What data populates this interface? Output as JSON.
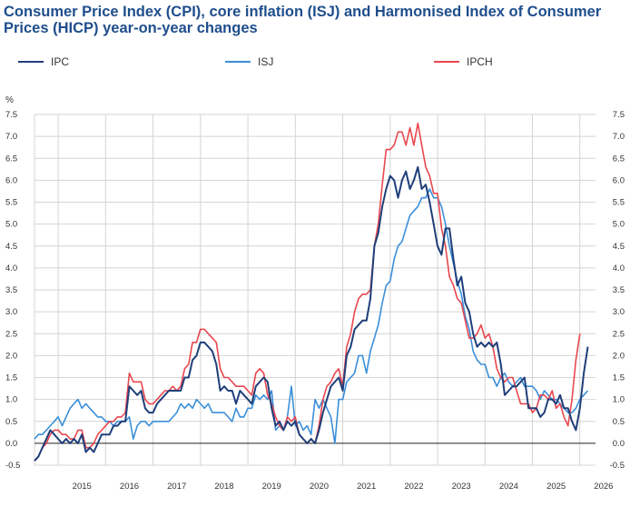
{
  "chart_data": {
    "type": "line",
    "title": "Consumer Price Index (CPI), core inflation (ISJ) and Harmonised Index of Consumer Prices (HICP) year-on-year changes",
    "ylabel": "%",
    "ylim": [
      -0.5,
      7.5
    ],
    "yticks": [
      "7.5",
      "7.0",
      "6.5",
      "6.0",
      "5.5",
      "5.0",
      "4.5",
      "4.0",
      "3.5",
      "3.0",
      "2.5",
      "2.0",
      "1.5",
      "1.0",
      "0.5",
      "0.0",
      "-0.5"
    ],
    "xlim": [
      2014.5,
      2026.33
    ],
    "year_ticks": [
      "2015",
      "2016",
      "2017",
      "2018",
      "2019",
      "2020",
      "2021",
      "2022",
      "2023",
      "2024",
      "2025",
      "2026"
    ],
    "grid": true,
    "legend_position": "top",
    "series": [
      {
        "name": "IPC",
        "color": "#1f3f7a",
        "start": 2014.5,
        "values": [
          -0.4,
          -0.3,
          -0.1,
          0.1,
          0.3,
          0.2,
          0.1,
          0.0,
          0.1,
          0.0,
          0.1,
          0.0,
          0.2,
          -0.2,
          -0.1,
          -0.2,
          0.0,
          0.2,
          0.2,
          0.2,
          0.4,
          0.4,
          0.5,
          0.5,
          1.3,
          1.2,
          1.1,
          1.2,
          0.8,
          0.7,
          0.7,
          0.9,
          1.0,
          1.1,
          1.2,
          1.2,
          1.2,
          1.2,
          1.5,
          1.5,
          1.9,
          2.0,
          2.3,
          2.3,
          2.2,
          2.1,
          1.8,
          1.2,
          1.3,
          1.2,
          1.2,
          0.9,
          1.2,
          1.1,
          1.0,
          0.9,
          1.3,
          1.4,
          1.5,
          1.4,
          0.8,
          0.4,
          0.5,
          0.3,
          0.5,
          0.4,
          0.5,
          0.2,
          0.1,
          0.0,
          0.1,
          0.0,
          0.3,
          0.7,
          1.0,
          1.3,
          1.4,
          1.5,
          1.2,
          2.0,
          2.2,
          2.6,
          2.7,
          2.8,
          2.8,
          3.3,
          4.5,
          4.8,
          5.4,
          5.8,
          6.1,
          6.0,
          5.6,
          6.0,
          6.2,
          5.8,
          6.0,
          6.3,
          5.8,
          5.9,
          5.5,
          5.0,
          4.5,
          4.3,
          4.9,
          4.9,
          4.2,
          3.6,
          3.8,
          3.2,
          3.0,
          2.5,
          2.2,
          2.3,
          2.2,
          2.3,
          2.2,
          2.3,
          1.8,
          1.1,
          1.2,
          1.3,
          1.3,
          1.4,
          1.5,
          0.8,
          0.8,
          0.8,
          0.6,
          0.7,
          1.0,
          1.0,
          0.9,
          1.1,
          0.8,
          0.8,
          0.5,
          0.3,
          0.8,
          1.6,
          2.2
        ]
      },
      {
        "name": "ISJ",
        "color": "#3b8fd9",
        "start": 2014.5,
        "values": [
          0.1,
          0.2,
          0.2,
          0.3,
          0.4,
          0.5,
          0.6,
          0.4,
          0.6,
          0.8,
          0.9,
          1.0,
          0.8,
          0.9,
          0.8,
          0.7,
          0.6,
          0.6,
          0.5,
          0.5,
          0.4,
          0.5,
          0.5,
          0.5,
          0.6,
          0.1,
          0.4,
          0.5,
          0.5,
          0.4,
          0.5,
          0.5,
          0.5,
          0.5,
          0.5,
          0.6,
          0.7,
          0.9,
          0.8,
          0.9,
          0.8,
          1.0,
          0.9,
          0.8,
          0.9,
          0.7,
          0.7,
          0.7,
          0.7,
          0.6,
          0.5,
          0.8,
          0.6,
          0.6,
          0.8,
          0.8,
          1.1,
          1.0,
          1.1,
          1.0,
          1.2,
          0.3,
          0.4,
          0.3,
          0.6,
          1.3,
          0.4,
          0.5,
          0.3,
          0.4,
          0.2,
          1.0,
          0.8,
          1.0,
          0.8,
          0.6,
          0.0,
          1.0,
          1.0,
          1.4,
          1.5,
          1.6,
          2.0,
          2.0,
          1.6,
          2.1,
          2.4,
          2.7,
          3.2,
          3.6,
          3.7,
          4.2,
          4.5,
          4.6,
          4.9,
          5.2,
          5.3,
          5.4,
          5.6,
          5.6,
          5.8,
          5.6,
          5.6,
          5.4,
          5.0,
          4.5,
          4.1,
          3.7,
          3.4,
          2.9,
          2.6,
          2.1,
          1.9,
          1.8,
          1.8,
          1.5,
          1.5,
          1.3,
          1.5,
          1.6,
          1.4,
          1.3,
          1.4,
          1.5,
          1.3,
          1.3,
          1.3,
          1.2,
          1.0,
          1.2,
          1.1,
          1.0,
          1.0,
          0.9,
          0.8,
          0.7,
          0.7,
          0.8,
          1.0,
          1.1,
          1.2
        ]
      },
      {
        "name": "IPCH",
        "color": "#e8474f",
        "start": 2014.5,
        "values": [
          -0.4,
          -0.3,
          -0.1,
          0.0,
          0.2,
          0.3,
          0.3,
          0.2,
          0.2,
          0.1,
          0.1,
          0.3,
          0.3,
          -0.1,
          -0.1,
          0.0,
          0.2,
          0.3,
          0.4,
          0.5,
          0.5,
          0.6,
          0.6,
          0.7,
          1.6,
          1.4,
          1.4,
          1.4,
          1.0,
          0.9,
          0.9,
          1.0,
          1.1,
          1.2,
          1.2,
          1.3,
          1.2,
          1.3,
          1.7,
          1.8,
          2.3,
          2.3,
          2.6,
          2.6,
          2.5,
          2.4,
          2.3,
          1.7,
          1.5,
          1.5,
          1.4,
          1.3,
          1.3,
          1.3,
          1.2,
          1.1,
          1.6,
          1.7,
          1.6,
          1.1,
          0.9,
          0.6,
          0.4,
          0.3,
          0.6,
          0.5,
          0.6,
          0.2,
          0.1,
          0.0,
          0.1,
          0.0,
          0.4,
          1.0,
          1.3,
          1.4,
          1.6,
          1.7,
          1.3,
          2.2,
          2.5,
          3.0,
          3.3,
          3.4,
          3.4,
          3.5,
          4.5,
          5.0,
          5.9,
          6.7,
          6.7,
          6.8,
          7.1,
          7.1,
          6.8,
          7.2,
          6.8,
          7.3,
          6.8,
          6.3,
          6.1,
          5.7,
          5.7,
          4.9,
          4.5,
          3.8,
          3.6,
          3.3,
          3.2,
          2.8,
          2.4,
          2.4,
          2.5,
          2.7,
          2.4,
          2.5,
          2.2,
          1.7,
          1.5,
          1.4,
          1.5,
          1.5,
          1.2,
          0.9,
          0.9,
          0.9,
          0.7,
          0.8,
          1.1,
          1.1,
          1.0,
          1.2,
          0.8,
          0.9,
          0.6,
          0.4,
          1.0,
          1.9,
          2.5
        ]
      }
    ]
  }
}
